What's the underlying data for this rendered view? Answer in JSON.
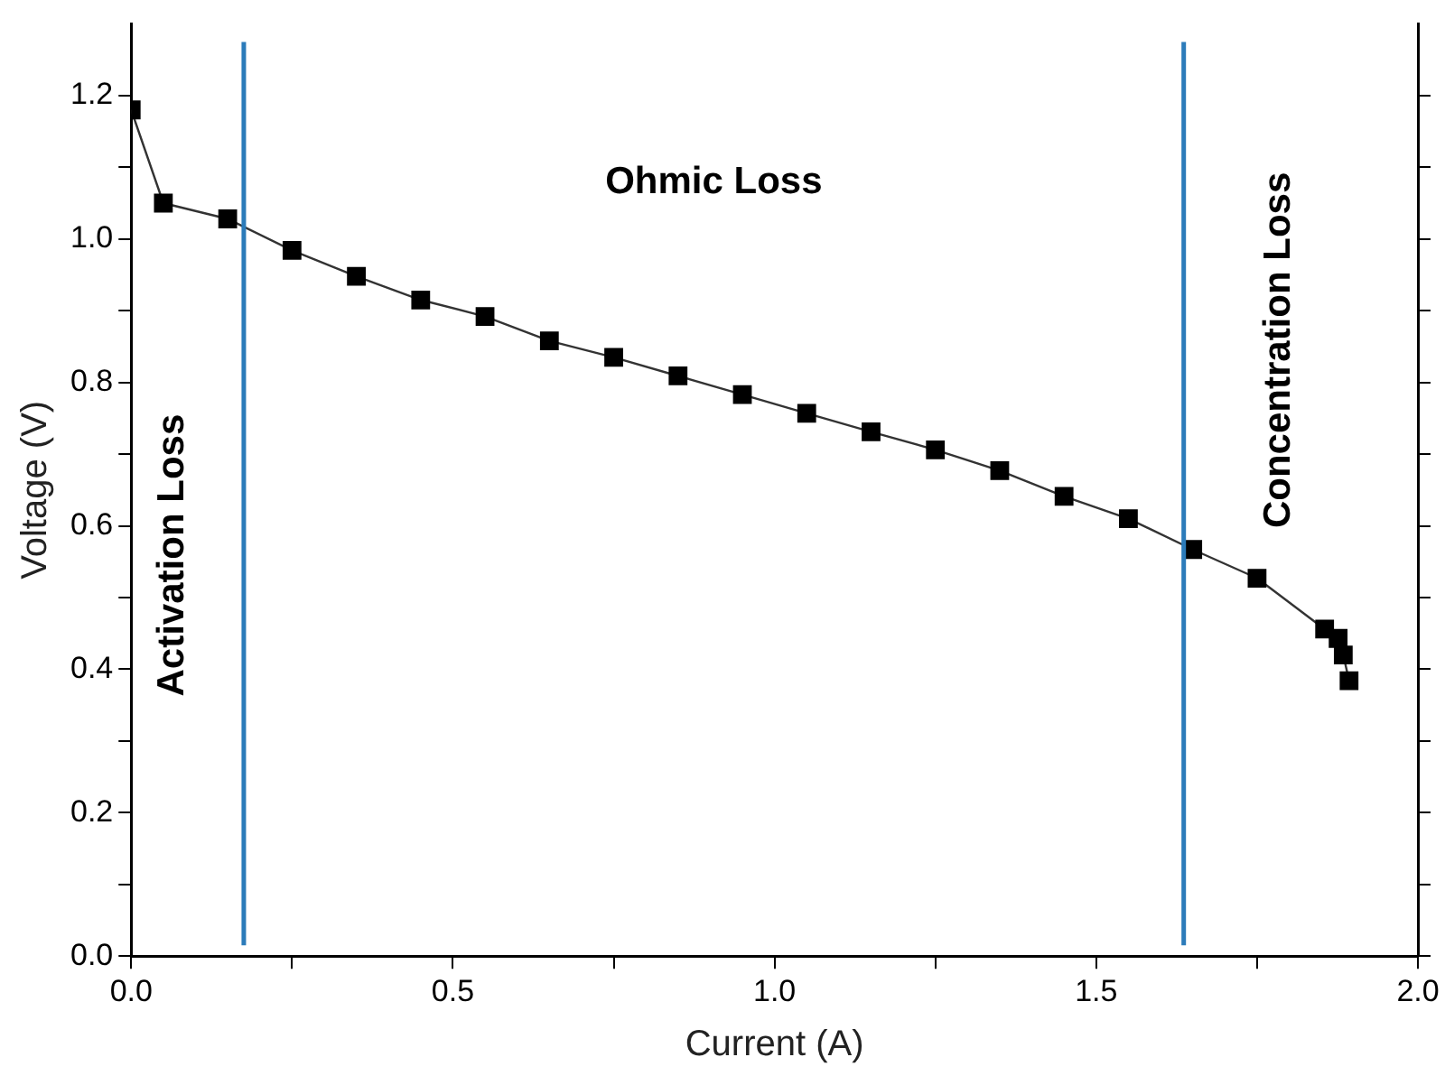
{
  "chart_data": {
    "type": "line",
    "xlabel": "Current (A)",
    "ylabel": "Voltage (V)",
    "x": [
      0,
      0.05,
      0.15,
      0.25,
      0.35,
      0.45,
      0.55,
      0.65,
      0.75,
      0.85,
      0.95,
      1.05,
      1.15,
      1.25,
      1.35,
      1.45,
      1.55,
      1.65,
      1.75,
      1.855,
      1.876,
      1.884,
      1.893
    ],
    "series": [
      {
        "color": "#000000",
        "values": [
          1.18,
          1.05,
          1.028,
          0.984,
          0.948,
          0.915,
          0.892,
          0.858,
          0.835,
          0.809,
          0.783,
          0.757,
          0.731,
          0.706,
          0.677,
          0.641,
          0.61,
          0.567,
          0.527,
          0.456,
          0.443,
          0.42,
          0.384
        ]
      }
    ],
    "marker": "square",
    "line_style": "solid",
    "grid": false,
    "legend": false,
    "xlim": [
      0,
      2.0
    ],
    "xticks": [
      {
        "value": 0,
        "label": "0.0"
      },
      {
        "value": 0.25,
        "label": null
      },
      0.5,
      {
        "value": 0.75,
        "label": null
      },
      {
        "value": 1,
        "label": "1.0"
      },
      {
        "value": 1.25,
        "label": null
      },
      1.5,
      {
        "value": 1.75,
        "label": null
      },
      {
        "value": 2,
        "label": "2.0"
      }
    ],
    "ylim": [
      0,
      1.3
    ],
    "yticks": [
      {
        "value": 0,
        "label": "0.0"
      },
      {
        "value": 0.1,
        "label": null
      },
      0.2,
      {
        "value": 0.3,
        "label": null
      },
      0.4,
      {
        "value": 0.5,
        "label": null
      },
      0.6,
      {
        "value": 0.7,
        "label": null
      },
      0.8,
      {
        "value": 0.9,
        "label": null
      },
      {
        "value": 1,
        "label": "1.0"
      },
      {
        "value": 1.1,
        "label": null
      },
      1.2
    ],
    "ref_lines": [
      {
        "axis": "x",
        "value": 0.175,
        "color": "#2b7bba"
      },
      {
        "axis": "x",
        "value": 1.636,
        "color": "#2b7bba"
      }
    ],
    "annotations": [
      "Activation Loss",
      "Ohmic Loss",
      "Concentration Loss"
    ]
  }
}
